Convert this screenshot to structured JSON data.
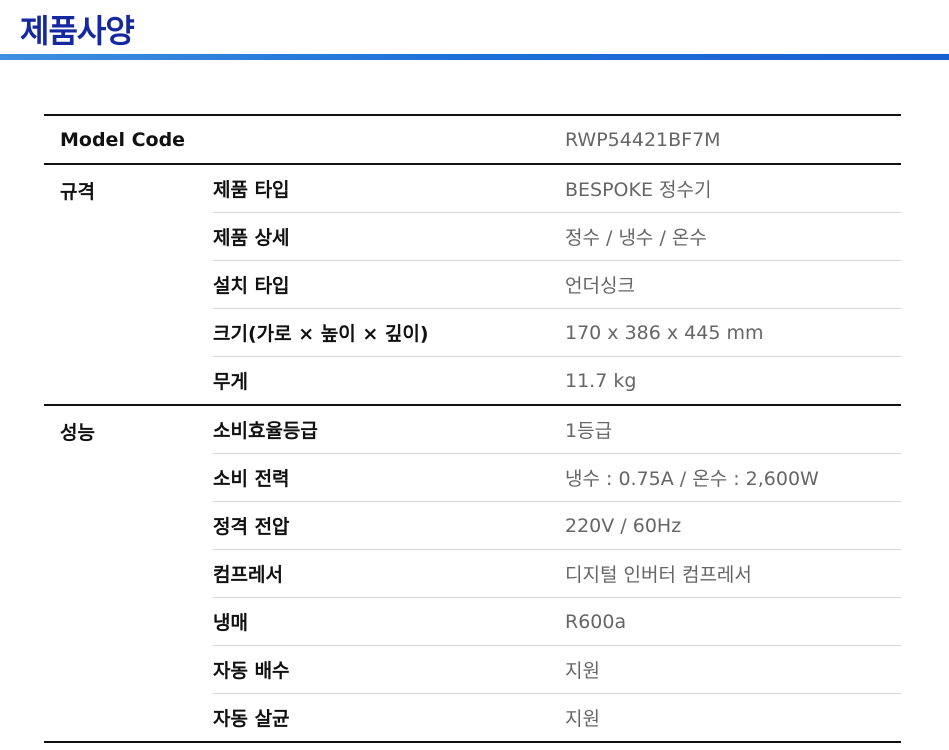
{
  "title": "제품사양",
  "model": {
    "label": "Model Code",
    "value": "RWP54421BF7M"
  },
  "groups": [
    {
      "name": "규격",
      "rows": [
        {
          "label": "제품 타입",
          "value": "BESPOKE 정수기"
        },
        {
          "label": "제품 상세",
          "value": "정수 / 냉수 / 온수"
        },
        {
          "label": "설치 타입",
          "value": "언더싱크"
        },
        {
          "label": "크기(가로 × 높이 × 깊이)",
          "value": "170 x 386 x 445 mm"
        },
        {
          "label": "무게",
          "value": "11.7 kg"
        }
      ]
    },
    {
      "name": "성능",
      "rows": [
        {
          "label": "소비효율등급",
          "value": "1등급"
        },
        {
          "label": "소비 전력",
          "value": "냉수 : 0.75A / 온수 : 2,600W"
        },
        {
          "label": "정격 전압",
          "value": "220V / 60Hz"
        },
        {
          "label": "컴프레서",
          "value": "디지털 인버터 컴프레서"
        },
        {
          "label": "냉매",
          "value": "R600a"
        },
        {
          "label": "자동 배수",
          "value": "지원"
        },
        {
          "label": "자동 살균",
          "value": "지원"
        }
      ]
    }
  ]
}
